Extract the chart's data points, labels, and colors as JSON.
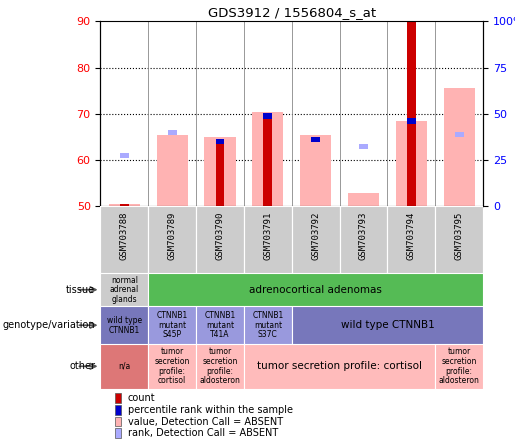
{
  "title": "GDS3912 / 1556804_s_at",
  "samples": [
    "GSM703788",
    "GSM703789",
    "GSM703790",
    "GSM703791",
    "GSM703792",
    "GSM703793",
    "GSM703794",
    "GSM703795"
  ],
  "ylim": [
    50,
    90
  ],
  "yticks_left": [
    50,
    60,
    70,
    80,
    90
  ],
  "yticks_right_labels": [
    "0",
    "25",
    "50",
    "75",
    "100%"
  ],
  "yticks_right_vals": [
    50,
    60,
    70,
    80,
    90
  ],
  "bar_color_red": "#cc0000",
  "bar_color_pink": "#ffb3b3",
  "bar_color_blue": "#0000cc",
  "bar_color_lightblue": "#aaaaff",
  "count_bars": [
    50.5,
    null,
    64.0,
    70.0,
    null,
    null,
    90.0,
    null
  ],
  "pink_bars_top": [
    50.5,
    65.5,
    65.0,
    70.5,
    65.5,
    53.0,
    68.5,
    75.5
  ],
  "blue_bars": [
    null,
    null,
    64.0,
    69.5,
    64.5,
    63.0,
    68.5,
    null
  ],
  "lightblue_bars": [
    61.0,
    66.0,
    null,
    null,
    null,
    63.0,
    null,
    65.5
  ],
  "tissue_row": [
    {
      "label": "normal\nadrenal\nglands",
      "span": [
        0,
        1
      ],
      "color": "#cccccc"
    },
    {
      "label": "adrenocortical adenomas",
      "span": [
        1,
        8
      ],
      "color": "#55bb55"
    }
  ],
  "genotype_row": [
    {
      "label": "wild type\nCTNNB1",
      "span": [
        0,
        1
      ],
      "color": "#7777bb"
    },
    {
      "label": "CTNNB1\nmutant\nS45P",
      "span": [
        1,
        2
      ],
      "color": "#9999dd"
    },
    {
      "label": "CTNNB1\nmutant\nT41A",
      "span": [
        2,
        3
      ],
      "color": "#9999dd"
    },
    {
      "label": "CTNNB1\nmutant\nS37C",
      "span": [
        3,
        4
      ],
      "color": "#9999dd"
    },
    {
      "label": "wild type CTNNB1",
      "span": [
        4,
        8
      ],
      "color": "#7777bb"
    }
  ],
  "other_row": [
    {
      "label": "n/a",
      "span": [
        0,
        1
      ],
      "color": "#dd7777"
    },
    {
      "label": "tumor\nsecretion\nprofile:\ncortisol",
      "span": [
        1,
        2
      ],
      "color": "#ffbbbb"
    },
    {
      "label": "tumor\nsecretion\nprofile:\naldosteron",
      "span": [
        2,
        3
      ],
      "color": "#ffbbbb"
    },
    {
      "label": "tumor secretion profile: cortisol",
      "span": [
        3,
        7
      ],
      "color": "#ffbbbb"
    },
    {
      "label": "tumor\nsecretion\nprofile:\naldosteron",
      "span": [
        7,
        8
      ],
      "color": "#ffbbbb"
    }
  ],
  "row_labels": [
    "tissue",
    "genotype/variation",
    "other"
  ],
  "legend_items": [
    {
      "color": "#cc0000",
      "label": "count"
    },
    {
      "color": "#0000cc",
      "label": "percentile rank within the sample"
    },
    {
      "color": "#ffb3b3",
      "label": "value, Detection Call = ABSENT"
    },
    {
      "color": "#aaaaff",
      "label": "rank, Detection Call = ABSENT"
    }
  ],
  "xlabel_bg": "#cccccc",
  "grid_color": "#000000",
  "sep_color": "#888888"
}
